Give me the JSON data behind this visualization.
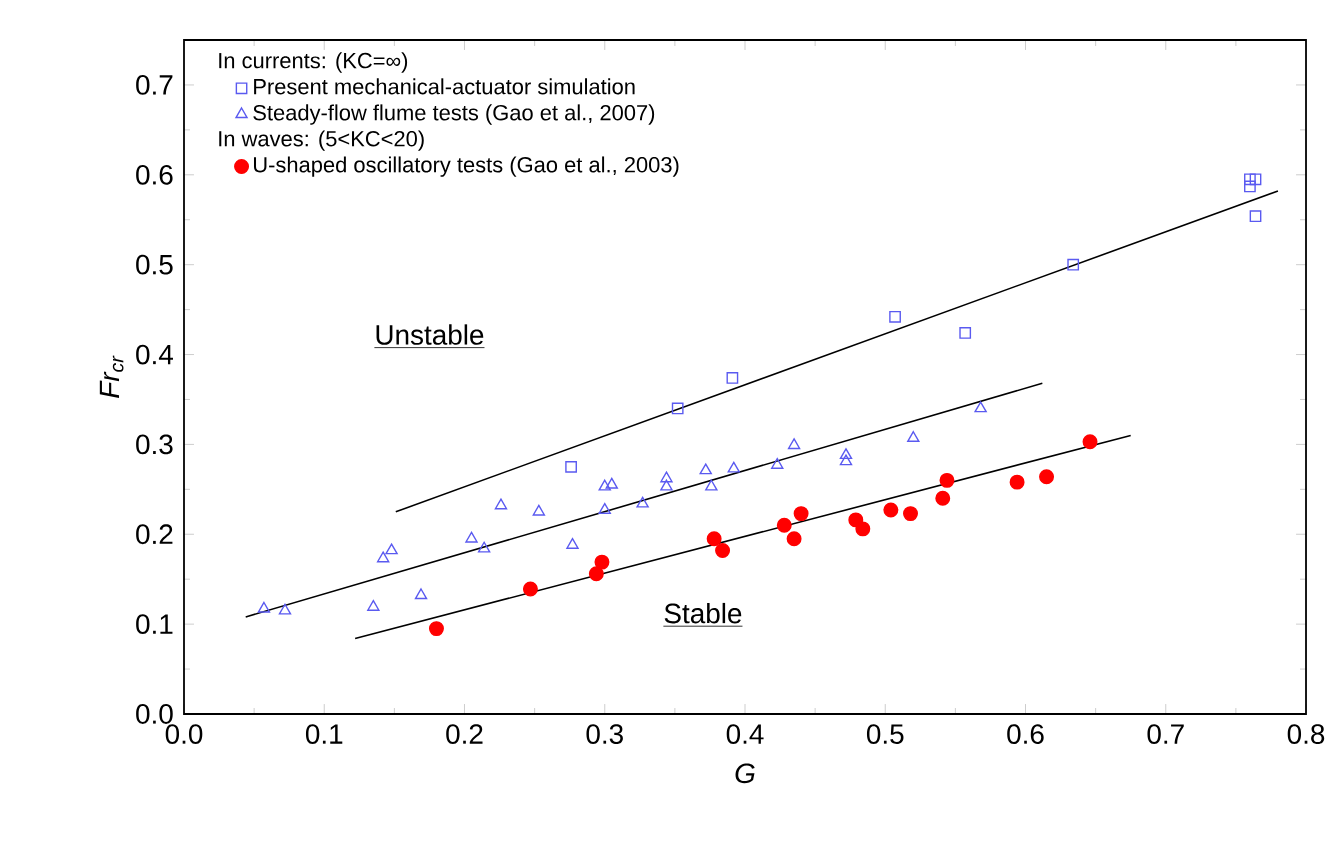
{
  "chart_data": {
    "type": "scatter",
    "xlabel": "G",
    "ylabel": "Fr$_{cr}$",
    "xlim": [
      0,
      0.8
    ],
    "ylim": [
      0,
      0.75
    ],
    "xticks": [
      {
        "value": 0,
        "label": "0.0"
      },
      0.1,
      0.2,
      0.3,
      0.4,
      0.5,
      0.6,
      0.7,
      0.8
    ],
    "yticks": [
      {
        "value": 0,
        "label": "0.0"
      },
      0.1,
      0.2,
      0.3,
      0.4,
      0.5,
      0.6,
      0.7
    ],
    "legend": "top left",
    "annotations": [
      "In currents: (KC=∞)",
      "In waves: (5<KC<20)",
      "Unstable",
      "Stable"
    ],
    "series": [
      {
        "name": "Present mechanical-actuator simulation",
        "color": "#5a5af0",
        "marker": "square",
        "x": [
          0.276,
          0.352,
          0.391,
          0.507,
          0.557,
          0.634,
          0.76,
          0.764,
          0.76,
          0.764
        ],
        "values": [
          0.275,
          0.34,
          0.374,
          0.442,
          0.424,
          0.5,
          0.595,
          0.595,
          0.587,
          0.554
        ]
      },
      {
        "name": "Steady-flow flume tests (Gao et al., 2007)",
        "color": "#5a5af0",
        "marker": "triangle",
        "x": [
          0.057,
          0.072,
          0.135,
          0.142,
          0.148,
          0.169,
          0.205,
          0.214,
          0.226,
          0.253,
          0.277,
          0.3,
          0.305,
          0.3,
          0.327,
          0.344,
          0.344,
          0.372,
          0.376,
          0.392,
          0.423,
          0.435,
          0.472,
          0.472,
          0.52,
          0.568
        ],
        "values": [
          0.117,
          0.115,
          0.119,
          0.173,
          0.182,
          0.132,
          0.195,
          0.184,
          0.232,
          0.225,
          0.188,
          0.253,
          0.255,
          0.227,
          0.234,
          0.262,
          0.253,
          0.271,
          0.253,
          0.273,
          0.277,
          0.299,
          0.288,
          0.281,
          0.307,
          0.34
        ]
      },
      {
        "name": "U-shaped oscillatory tests (Gao et al., 2003)",
        "color": "#ff0000",
        "marker": "circle",
        "x": [
          0.18,
          0.247,
          0.298,
          0.294,
          0.378,
          0.384,
          0.428,
          0.44,
          0.435,
          0.479,
          0.484,
          0.504,
          0.518,
          0.544,
          0.541,
          0.594,
          0.615,
          0.646
        ],
        "values": [
          0.095,
          0.139,
          0.169,
          0.156,
          0.195,
          0.182,
          0.21,
          0.223,
          0.195,
          0.216,
          0.206,
          0.227,
          0.223,
          0.26,
          0.24,
          0.258,
          0.264,
          0.303
        ]
      },
      {
        "type": "line",
        "color": "#000000",
        "marker": "none",
        "x": [
          0.151,
          0.78
        ],
        "values": [
          0.225,
          0.582
        ]
      },
      {
        "type": "line",
        "color": "#000000",
        "marker": "none",
        "x": [
          0.044,
          0.612
        ],
        "values": [
          0.108,
          0.368
        ]
      },
      {
        "type": "line",
        "color": "#000000",
        "marker": "none",
        "x": [
          0.122,
          0.675
        ],
        "values": [
          0.084,
          0.31
        ]
      }
    ]
  }
}
